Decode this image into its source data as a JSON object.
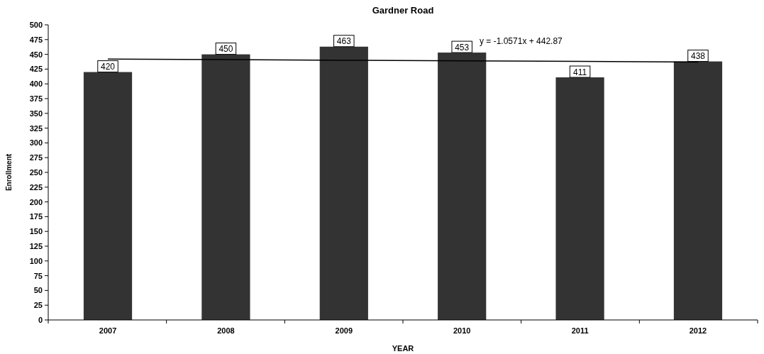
{
  "chart_data": {
    "type": "bar",
    "title": "Gardner Road",
    "xlabel": "YEAR",
    "ylabel": "Enrollment",
    "categories": [
      "2007",
      "2008",
      "2009",
      "2010",
      "2011",
      "2012"
    ],
    "series": [
      {
        "color": "#333333",
        "values": [
          420,
          450,
          463,
          453,
          411,
          438
        ],
        "value_labels": [
          "420",
          "450",
          "463",
          "453",
          "411",
          "438"
        ]
      },
      {
        "type": "line",
        "color": "#000000",
        "values": [
          442,
          441,
          440,
          439,
          438,
          437
        ]
      }
    ],
    "annotations": [
      "y = -1.0571x + 442.87"
    ],
    "ylim": [
      0,
      500
    ],
    "yticks": [
      0,
      25,
      50,
      75,
      100,
      125,
      150,
      175,
      200,
      225,
      250,
      275,
      300,
      325,
      350,
      375,
      400,
      425,
      450,
      475,
      500
    ],
    "grid": false,
    "marker": "none",
    "line_style": "solid"
  }
}
